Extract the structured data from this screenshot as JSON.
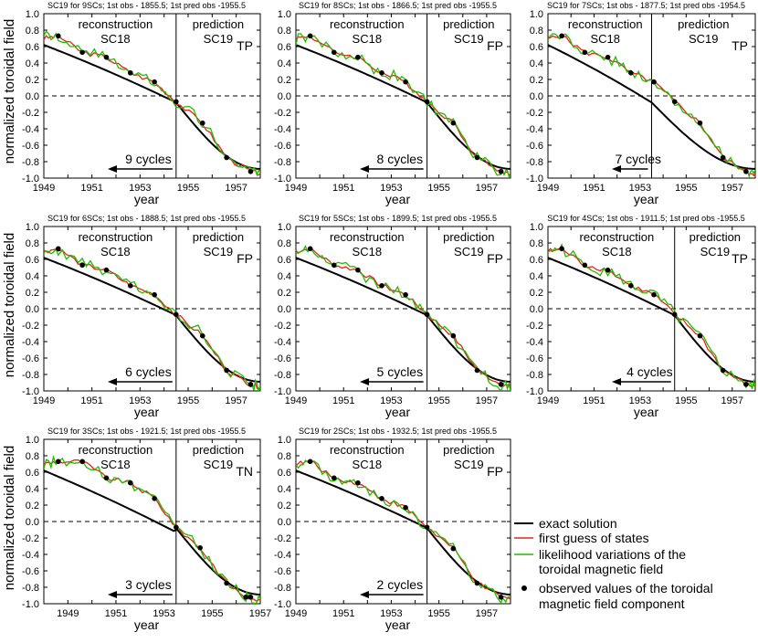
{
  "y_axis_label": "normalized toroidal field",
  "x_axis_label": "year",
  "section_labels": {
    "reconstruction": "reconstruction",
    "recon_cycle": "SC18",
    "prediction": "prediction",
    "pred_cycle": "SC19"
  },
  "legend": {
    "exact": "exact solution",
    "guess": "first guess of states",
    "likelihood_1": "likelihood variations of the",
    "likelihood_2": "toroidal magnetic field",
    "observed_1": "observed values of the toroidal",
    "observed_2": "magnetic field component"
  },
  "colors": {
    "exact": "#000000",
    "guess": "#e8231c",
    "likelihood": "#22bb00",
    "observed": "#000000",
    "zero_line": "#000000"
  },
  "chart_data": [
    {
      "type": "line",
      "title": "SC19 for 9SCs; 1st obs - 1855.5; 1st pred obs -1955.5",
      "flag": "TP",
      "cycles_label": "9 cycles",
      "xlim": [
        1949,
        1958
      ],
      "ylim": [
        -1.0,
        1.0
      ],
      "x_ticks": [
        1949,
        1951,
        1953,
        1955,
        1957
      ],
      "y_ticks": [
        -1.0,
        -0.8,
        -0.6,
        -0.4,
        -0.2,
        0.0,
        0.2,
        0.4,
        0.6,
        0.8,
        1.0
      ],
      "split_year": 1954.5,
      "observed": [
        [
          1949.6,
          0.73
        ],
        [
          1950.6,
          0.53
        ],
        [
          1951.6,
          0.47
        ],
        [
          1952.6,
          0.28
        ],
        [
          1953.6,
          0.17
        ],
        [
          1954.5,
          -0.07
        ],
        [
          1955.6,
          -0.33
        ],
        [
          1956.6,
          -0.75
        ],
        [
          1957.6,
          -0.92
        ]
      ]
    },
    {
      "type": "line",
      "title": "SC19 for 8SCs; 1st obs - 1866.5; 1st pred obs -1955.5",
      "flag": "FP",
      "cycles_label": "8 cycles",
      "xlim": [
        1949,
        1958
      ],
      "ylim": [
        -1.0,
        1.0
      ],
      "x_ticks": [
        1949,
        1951,
        1953,
        1955,
        1957
      ],
      "y_ticks": [
        -1.0,
        -0.8,
        -0.6,
        -0.4,
        -0.2,
        0.0,
        0.2,
        0.4,
        0.6,
        0.8,
        1.0
      ],
      "split_year": 1954.5,
      "observed": [
        [
          1949.6,
          0.73
        ],
        [
          1950.6,
          0.53
        ],
        [
          1951.6,
          0.47
        ],
        [
          1952.6,
          0.28
        ],
        [
          1953.6,
          0.17
        ],
        [
          1954.5,
          -0.07
        ],
        [
          1955.6,
          -0.33
        ],
        [
          1956.6,
          -0.75
        ],
        [
          1957.6,
          -0.92
        ]
      ]
    },
    {
      "type": "line",
      "title": "SC19 for 7SCs; 1st obs - 1877.5; 1st pred obs -1954.5",
      "flag": "TP",
      "cycles_label": "7 cycles",
      "xlim": [
        1949,
        1958
      ],
      "ylim": [
        -1.0,
        1.0
      ],
      "x_ticks": [
        1949,
        1951,
        1953,
        1955,
        1957
      ],
      "y_ticks": [
        -1.0,
        -0.8,
        -0.6,
        -0.4,
        -0.2,
        0.0,
        0.2,
        0.4,
        0.6,
        0.8,
        1.0
      ],
      "split_year": 1953.5,
      "observed": [
        [
          1949.6,
          0.73
        ],
        [
          1950.6,
          0.53
        ],
        [
          1951.6,
          0.47
        ],
        [
          1952.6,
          0.28
        ],
        [
          1953.6,
          0.17
        ],
        [
          1954.5,
          -0.07
        ],
        [
          1955.6,
          -0.33
        ],
        [
          1956.6,
          -0.75
        ],
        [
          1957.6,
          -0.92
        ]
      ]
    },
    {
      "type": "line",
      "title": "SC19 for 6SCs; 1st obs - 1888.5; 1st pred obs -1955.5",
      "flag": "FP",
      "cycles_label": "6 cycles",
      "xlim": [
        1949,
        1958
      ],
      "ylim": [
        -1.0,
        1.0
      ],
      "x_ticks": [
        1949,
        1951,
        1953,
        1955,
        1957
      ],
      "y_ticks": [
        -1.0,
        -0.8,
        -0.6,
        -0.4,
        -0.2,
        0.0,
        0.2,
        0.4,
        0.6,
        0.8,
        1.0
      ],
      "split_year": 1954.5,
      "observed": [
        [
          1949.6,
          0.73
        ],
        [
          1950.6,
          0.53
        ],
        [
          1951.6,
          0.47
        ],
        [
          1952.6,
          0.28
        ],
        [
          1953.6,
          0.17
        ],
        [
          1954.5,
          -0.07
        ],
        [
          1955.6,
          -0.33
        ],
        [
          1956.6,
          -0.75
        ],
        [
          1957.6,
          -0.92
        ]
      ]
    },
    {
      "type": "line",
      "title": "SC19 for 5SCs; 1st obs - 1899.5; 1st pred obs -1955.5",
      "flag": "FP",
      "cycles_label": "5 cycles",
      "xlim": [
        1949,
        1958
      ],
      "ylim": [
        -1.0,
        1.0
      ],
      "x_ticks": [
        1949,
        1951,
        1953,
        1955,
        1957
      ],
      "y_ticks": [
        -1.0,
        -0.8,
        -0.6,
        -0.4,
        -0.2,
        0.0,
        0.2,
        0.4,
        0.6,
        0.8,
        1.0
      ],
      "split_year": 1954.5,
      "observed": [
        [
          1949.6,
          0.73
        ],
        [
          1950.6,
          0.53
        ],
        [
          1951.6,
          0.47
        ],
        [
          1952.6,
          0.28
        ],
        [
          1953.6,
          0.17
        ],
        [
          1954.5,
          -0.07
        ],
        [
          1955.6,
          -0.33
        ],
        [
          1956.6,
          -0.75
        ],
        [
          1957.6,
          -0.92
        ]
      ]
    },
    {
      "type": "line",
      "title": "SC19 for 4SCs; 1st obs - 1911.5; 1st pred obs -1955.5",
      "flag": "TP",
      "cycles_label": "4 cycles",
      "xlim": [
        1949,
        1958
      ],
      "ylim": [
        -1.0,
        1.0
      ],
      "x_ticks": [
        1949,
        1951,
        1953,
        1955,
        1957
      ],
      "y_ticks": [
        -1.0,
        -0.8,
        -0.6,
        -0.4,
        -0.2,
        0.0,
        0.2,
        0.4,
        0.6,
        0.8,
        1.0
      ],
      "split_year": 1954.5,
      "observed": [
        [
          1949.6,
          0.73
        ],
        [
          1950.6,
          0.53
        ],
        [
          1951.6,
          0.47
        ],
        [
          1952.6,
          0.28
        ],
        [
          1953.6,
          0.17
        ],
        [
          1954.5,
          -0.07
        ],
        [
          1955.6,
          -0.33
        ],
        [
          1956.6,
          -0.75
        ],
        [
          1957.6,
          -0.92
        ]
      ]
    },
    {
      "type": "line",
      "title": "SC19 for 3SCs; 1st obs - 1921.5; 1st pred obs -1955.5",
      "flag": "TN",
      "cycles_label": "3 cycles",
      "xlim": [
        1948,
        1957
      ],
      "ylim": [
        -1.0,
        1.0
      ],
      "x_ticks": [
        1949,
        1951,
        1953,
        1955,
        1957
      ],
      "y_ticks": [
        -1.0,
        -0.8,
        -0.6,
        -0.4,
        -0.2,
        0.0,
        0.2,
        0.4,
        0.6,
        0.8,
        1.0
      ],
      "split_year": 1953.5,
      "observed": [
        [
          1948.6,
          0.73
        ],
        [
          1949.6,
          0.73
        ],
        [
          1950.6,
          0.53
        ],
        [
          1951.6,
          0.47
        ],
        [
          1952.6,
          0.28
        ],
        [
          1953.5,
          -0.07
        ],
        [
          1954.5,
          -0.32
        ],
        [
          1955.6,
          -0.75
        ],
        [
          1956.4,
          -0.92
        ],
        [
          1956.6,
          -0.92
        ]
      ]
    },
    {
      "type": "line",
      "title": "SC19 for 2SCs; 1st obs - 1932.5; 1st pred obs -1955.5",
      "flag": "FP",
      "cycles_label": "2 cycles",
      "xlim": [
        1949,
        1958
      ],
      "ylim": [
        -1.0,
        1.0
      ],
      "x_ticks": [
        1949,
        1951,
        1953,
        1955,
        1957
      ],
      "y_ticks": [
        -1.0,
        -0.8,
        -0.6,
        -0.4,
        -0.2,
        0.0,
        0.2,
        0.4,
        0.6,
        0.8,
        1.0
      ],
      "split_year": 1954.5,
      "observed": [
        [
          1949.6,
          0.73
        ],
        [
          1950.6,
          0.53
        ],
        [
          1951.6,
          0.47
        ],
        [
          1952.6,
          0.28
        ],
        [
          1953.6,
          0.17
        ],
        [
          1954.5,
          -0.07
        ],
        [
          1955.6,
          -0.33
        ],
        [
          1956.6,
          -0.75
        ],
        [
          1957.6,
          -0.92
        ]
      ]
    }
  ]
}
